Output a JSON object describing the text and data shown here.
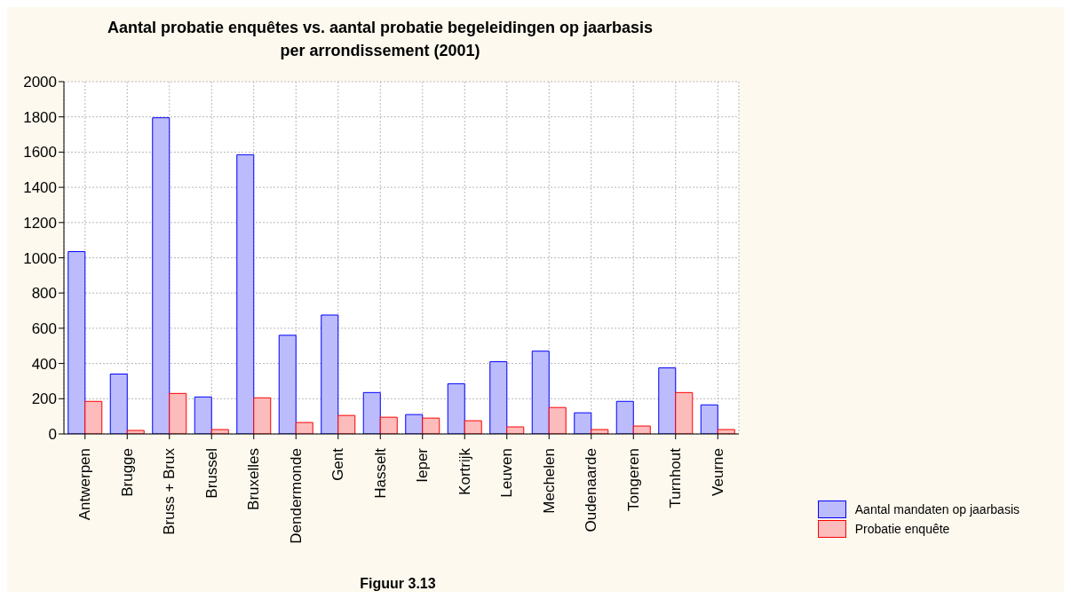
{
  "chart_data": {
    "type": "bar",
    "title": "Aantal probatie enquêtes vs. aantal probatie begeleidingen op jaarbasis  per arrondissement (2001)",
    "categories": [
      "Antwerpen",
      "Brugge",
      "Bruss + Brux",
      "Brussel",
      "Bruxelles",
      "Dendermonde",
      "Gent",
      "Hasselt",
      "Ieper",
      "Kortrijk",
      "Leuven",
      "Mechelen",
      "Oudenaarde",
      "Tongeren",
      "Turnhout",
      "Veurne"
    ],
    "series": [
      {
        "name": "Aantal mandaten op jaarbasis",
        "color": "#bcbcfc",
        "values": [
          1035,
          340,
          1795,
          210,
          1585,
          560,
          675,
          235,
          110,
          285,
          410,
          470,
          120,
          185,
          375,
          165
        ]
      },
      {
        "name": "Probatie enquête",
        "color": "#fcbcbc",
        "values": [
          185,
          20,
          230,
          25,
          205,
          65,
          105,
          95,
          90,
          75,
          40,
          150,
          25,
          45,
          235,
          25
        ]
      }
    ],
    "ylim": [
      0,
      2000
    ],
    "yticks": [
      0,
      200,
      400,
      600,
      800,
      1000,
      1200,
      1400,
      1600,
      1800,
      2000
    ],
    "grid": true,
    "legend": "bottom right",
    "annotations": [
      "Figuur 3.13"
    ]
  }
}
